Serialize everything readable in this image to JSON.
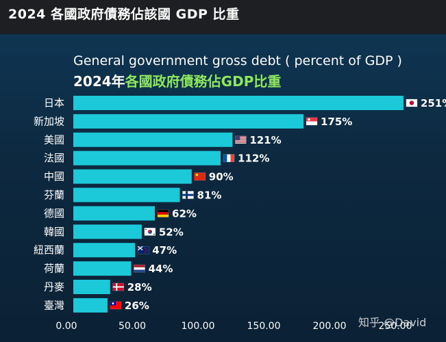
{
  "header": {
    "title": "2024 各國政府債務佔該國 GDP 比重"
  },
  "chart_titles": {
    "english": "General government gross debt ( percent of GDP )",
    "chinese_year": "2024年",
    "chinese_rest": "各國政府債務佔GDP比重"
  },
  "watermark": "知乎 @David",
  "colors": {
    "bar": "#1cc9d9",
    "highlight": "#8ee85e",
    "background": "#0d2940"
  },
  "chart_data": {
    "type": "bar",
    "orientation": "horizontal",
    "title": "General government gross debt ( percent of GDP )",
    "subtitle": "2024年各國政府債務佔GDP比重",
    "xlabel": "",
    "ylabel": "",
    "xlim": [
      0,
      250
    ],
    "xticks": [
      "0.00",
      "50.00",
      "100.00",
      "150.00",
      "200.00",
      "250.00"
    ],
    "xtick_values": [
      0,
      50,
      100,
      150,
      200,
      250
    ],
    "grid": false,
    "categories": [
      "日本",
      "新加坡",
      "美國",
      "法國",
      "中國",
      "芬蘭",
      "德國",
      "韓國",
      "紐西蘭",
      "荷蘭",
      "丹麥",
      "臺灣"
    ],
    "values": [
      251,
      175,
      121,
      112,
      90,
      81,
      62,
      52,
      47,
      44,
      28,
      26
    ],
    "value_labels": [
      "251%",
      "175%",
      "121%",
      "112%",
      "90%",
      "81%",
      "62%",
      "52%",
      "47%",
      "44%",
      "28%",
      "26%"
    ],
    "flags": [
      "japan-flag-icon",
      "singapore-flag-icon",
      "usa-flag-icon",
      "france-flag-icon",
      "china-flag-icon",
      "finland-flag-icon",
      "germany-flag-icon",
      "korea-flag-icon",
      "new-zealand-flag-icon",
      "netherlands-flag-icon",
      "denmark-flag-icon",
      "taiwan-flag-icon"
    ]
  }
}
